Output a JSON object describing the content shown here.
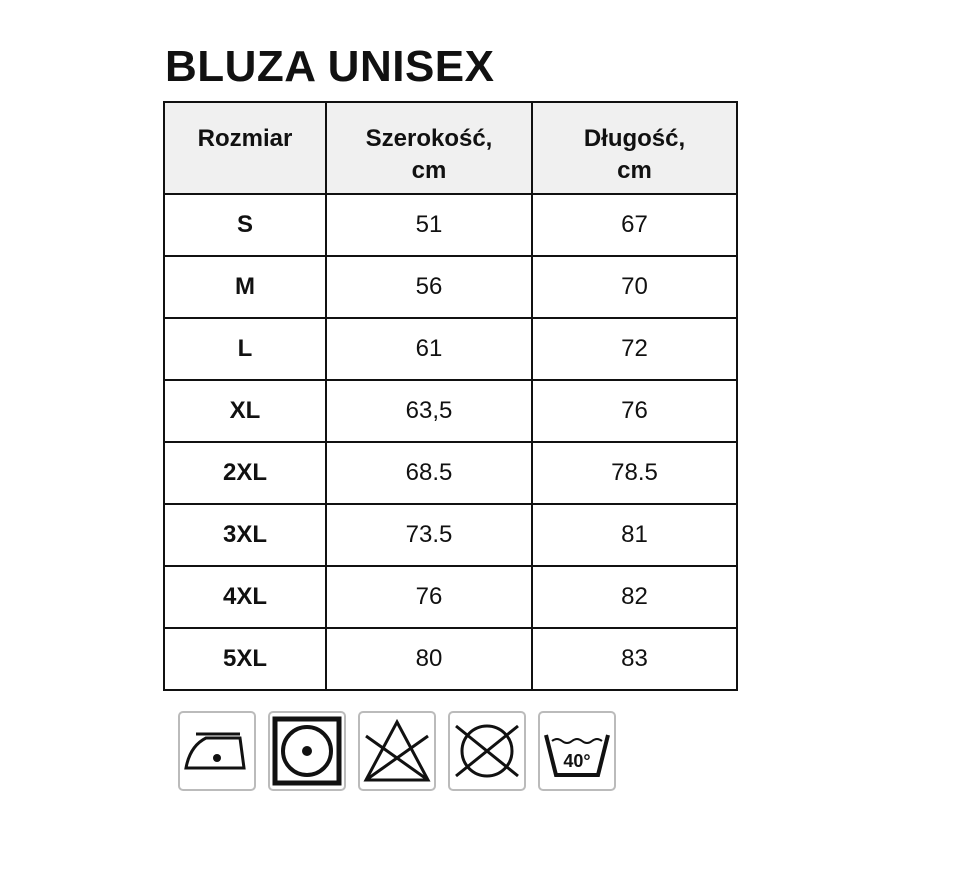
{
  "title": "BLUZA UNISEX",
  "table": {
    "headers": [
      "Rozmiar",
      "Szerokość,\ncm",
      "Długość,\ncm"
    ],
    "header_lines": [
      [
        "Rozmiar"
      ],
      [
        "Szerokość,",
        "cm"
      ],
      [
        "Długość,",
        "cm"
      ]
    ],
    "rows": [
      [
        "S",
        "51",
        "67"
      ],
      [
        "M",
        "56",
        "70"
      ],
      [
        "L",
        "61",
        "72"
      ],
      [
        "XL",
        "63,5",
        "76"
      ],
      [
        "2XL",
        "68.5",
        "78.5"
      ],
      [
        "3XL",
        "73.5",
        "81"
      ],
      [
        "4XL",
        "76",
        "82"
      ],
      [
        "5XL",
        "80",
        "83"
      ]
    ]
  },
  "care_icons": [
    {
      "name": "iron-low-temp-icon"
    },
    {
      "name": "tumble-dry-icon"
    },
    {
      "name": "no-bleach-icon"
    },
    {
      "name": "no-dry-clean-icon"
    },
    {
      "name": "wash-40-icon",
      "label": "40°"
    }
  ]
}
